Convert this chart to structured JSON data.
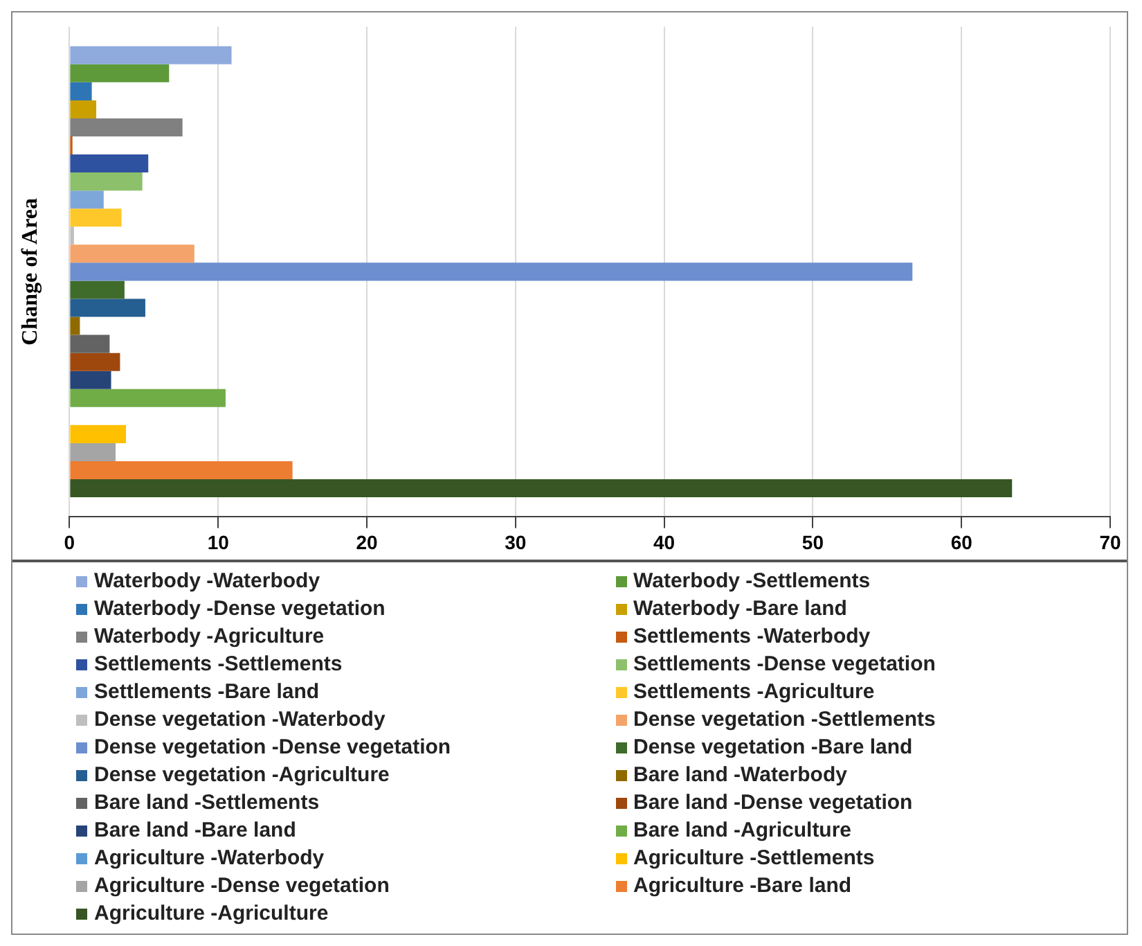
{
  "chart_data": {
    "type": "bar",
    "orientation": "horizontal",
    "ylabel": "Change of Area",
    "categories": [
      null
    ],
    "xlim": [
      0,
      70
    ],
    "xticks": [
      0,
      10,
      20,
      30,
      40,
      50,
      60,
      70
    ],
    "grid": "x",
    "legend": "bottom",
    "series": [
      {
        "name": "Waterbody -Waterbody",
        "color": "#8faadc",
        "values": [
          10.9
        ]
      },
      {
        "name": "Waterbody -Settlements",
        "color": "#5e9a3a",
        "values": [
          6.7
        ]
      },
      {
        "name": "Waterbody -Dense vegetation",
        "color": "#2e75b6",
        "values": [
          1.5
        ]
      },
      {
        "name": "Waterbody -Bare land",
        "color": "#c9a000",
        "values": [
          1.8
        ]
      },
      {
        "name": "Waterbody -Agriculture",
        "color": "#808080",
        "values": [
          7.6
        ]
      },
      {
        "name": "Settlements -Waterbody",
        "color": "#c55a11",
        "values": [
          0.2
        ]
      },
      {
        "name": "Settlements -Settlements",
        "color": "#2f52a0",
        "values": [
          5.3
        ]
      },
      {
        "name": "Settlements -Dense vegetation",
        "color": "#8cc06a",
        "values": [
          4.9
        ]
      },
      {
        "name": "Settlements -Bare land",
        "color": "#7da7d9",
        "values": [
          2.3
        ]
      },
      {
        "name": "Settlements -Agriculture",
        "color": "#ffc82a",
        "values": [
          3.5
        ]
      },
      {
        "name": "Dense vegetation -Waterbody",
        "color": "#bfbfbf",
        "values": [
          0.3
        ]
      },
      {
        "name": "Dense vegetation -Settlements",
        "color": "#f4a46a",
        "values": [
          8.4
        ]
      },
      {
        "name": "Dense vegetation -Dense vegetation",
        "color": "#6d8fcf",
        "values": [
          56.7
        ]
      },
      {
        "name": "Dense vegetation -Bare land",
        "color": "#3f6b2b",
        "values": [
          3.7
        ]
      },
      {
        "name": "Dense vegetation -Agriculture",
        "color": "#255e91",
        "values": [
          5.1
        ]
      },
      {
        "name": "Bare land -Waterbody",
        "color": "#8f6a00",
        "values": [
          0.7
        ]
      },
      {
        "name": "Bare land -Settlements",
        "color": "#636363",
        "values": [
          2.7
        ]
      },
      {
        "name": "Bare land -Dense vegetation",
        "color": "#9e480e",
        "values": [
          3.4
        ]
      },
      {
        "name": "Bare land -Bare land",
        "color": "#264478",
        "values": [
          2.8
        ]
      },
      {
        "name": "Bare land -Agriculture",
        "color": "#70ad47",
        "values": [
          10.5
        ]
      },
      {
        "name": "Agriculture -Waterbody",
        "color": "#5b9bd5",
        "values": [
          0
        ]
      },
      {
        "name": "Agriculture -Settlements",
        "color": "#ffc000",
        "values": [
          3.8
        ]
      },
      {
        "name": "Agriculture -Dense vegetation",
        "color": "#a5a5a5",
        "values": [
          3.1
        ]
      },
      {
        "name": "Agriculture -Bare land",
        "color": "#ed7d31",
        "values": [
          15.0
        ]
      },
      {
        "name": "Agriculture -Agriculture",
        "color": "#375623",
        "values": [
          63.4
        ]
      }
    ]
  }
}
